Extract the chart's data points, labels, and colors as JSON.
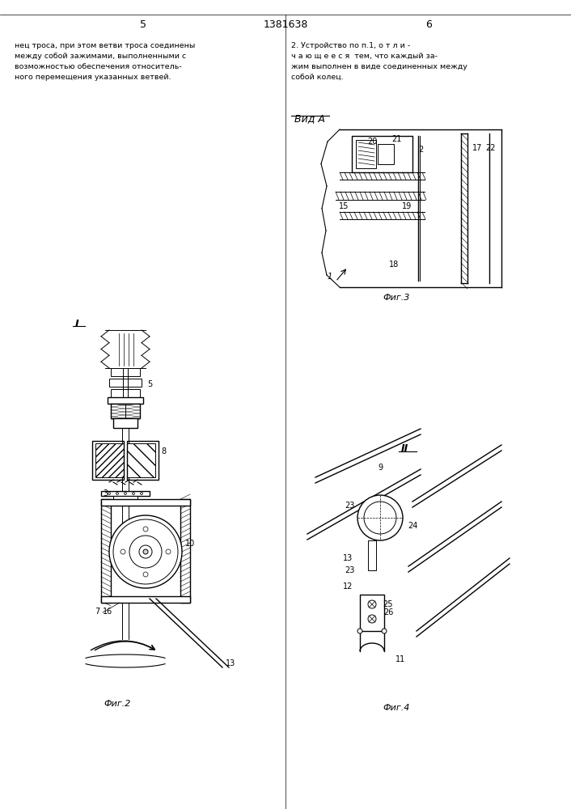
{
  "page_width": 7.07,
  "page_height": 10.0,
  "bg_color": "#ffffff",
  "text_color": "#000000",
  "line_color": "#000000",
  "header": {
    "left_num": "5",
    "center_num": "1381638",
    "right_num": "6"
  },
  "left_text_lines": [
    "нец троса, при этом ветви троса соединены",
    "между собой зажимами, выполненными с",
    "возможностью обеспечения относитель-",
    "ного перемещения указанных ветвей."
  ],
  "right_text_lines": [
    "2. Устройство по п.1, о т л и -",
    "ч а ю щ е е с я  тем, что каждый за-",
    "жим выполнен в виде соединенных между",
    "собой колец."
  ],
  "vida_label": "Вид А",
  "fig2_label": "Фиг.2",
  "fig3_label": "Фиг.3",
  "fig4_label": "Фиг.4",
  "marker_I": "I",
  "marker_II": "II"
}
